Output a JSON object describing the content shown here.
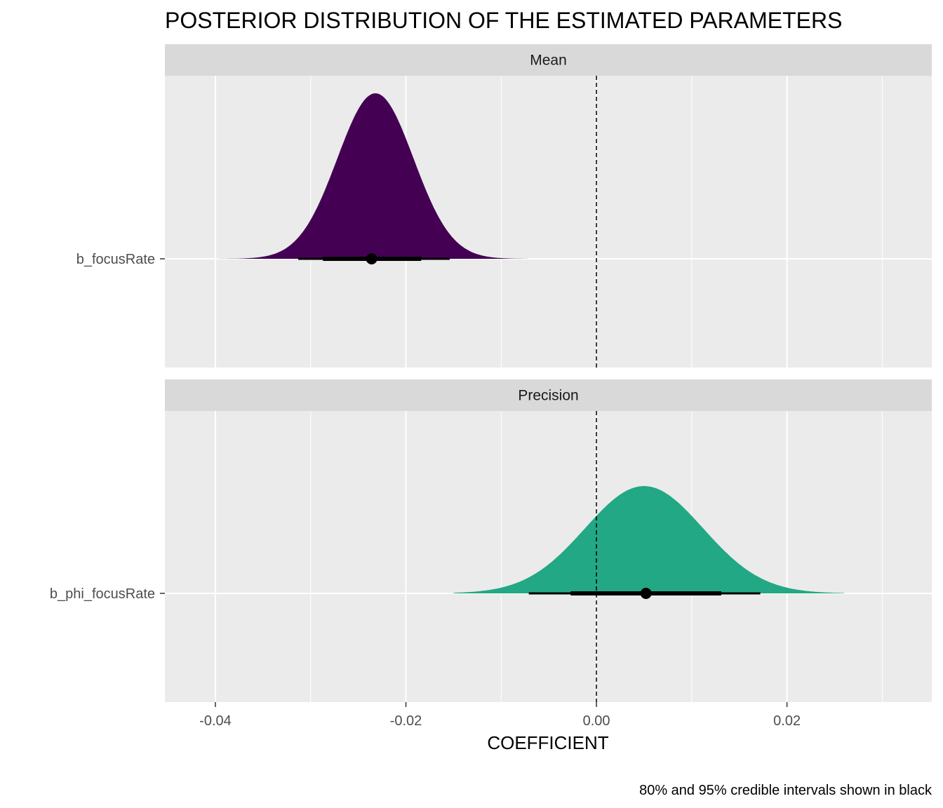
{
  "chart_data": {
    "type": "density",
    "title": "POSTERIOR DISTRIBUTION OF THE ESTIMATED PARAMETERS",
    "xlabel": "COEFFICIENT",
    "ylabel": "",
    "caption": "80% and 95% credible intervals shown in black",
    "xlim": [
      -0.0453,
      0.0352
    ],
    "x_ticks": [
      -0.04,
      -0.02,
      0.0,
      0.02
    ],
    "x_tick_labels": [
      "-0.04",
      "-0.02",
      "0.00",
      "0.02"
    ],
    "reference_line": {
      "x": 0.0,
      "style": "dashed"
    },
    "grid": true,
    "legend": "none",
    "panels": [
      {
        "strip_label": "Mean",
        "parameter": "b_focusRate",
        "fill_color": "#440154",
        "median": -0.0236,
        "ci_80": [
          -0.0287,
          -0.0184
        ],
        "ci_95": [
          -0.0313,
          -0.0154
        ],
        "density_range": [
          -0.042,
          -0.0072
        ],
        "density_peak": -0.0232,
        "density_sd": 0.004
      },
      {
        "strip_label": "Precision",
        "parameter": "b_phi_focusRate",
        "fill_color": "#22A884",
        "median": 0.0052,
        "ci_80": [
          -0.0027,
          0.0131
        ],
        "ci_95": [
          -0.0071,
          0.0172
        ],
        "density_range": [
          -0.015,
          0.026
        ],
        "density_peak": 0.005,
        "density_sd": 0.0062
      }
    ]
  }
}
